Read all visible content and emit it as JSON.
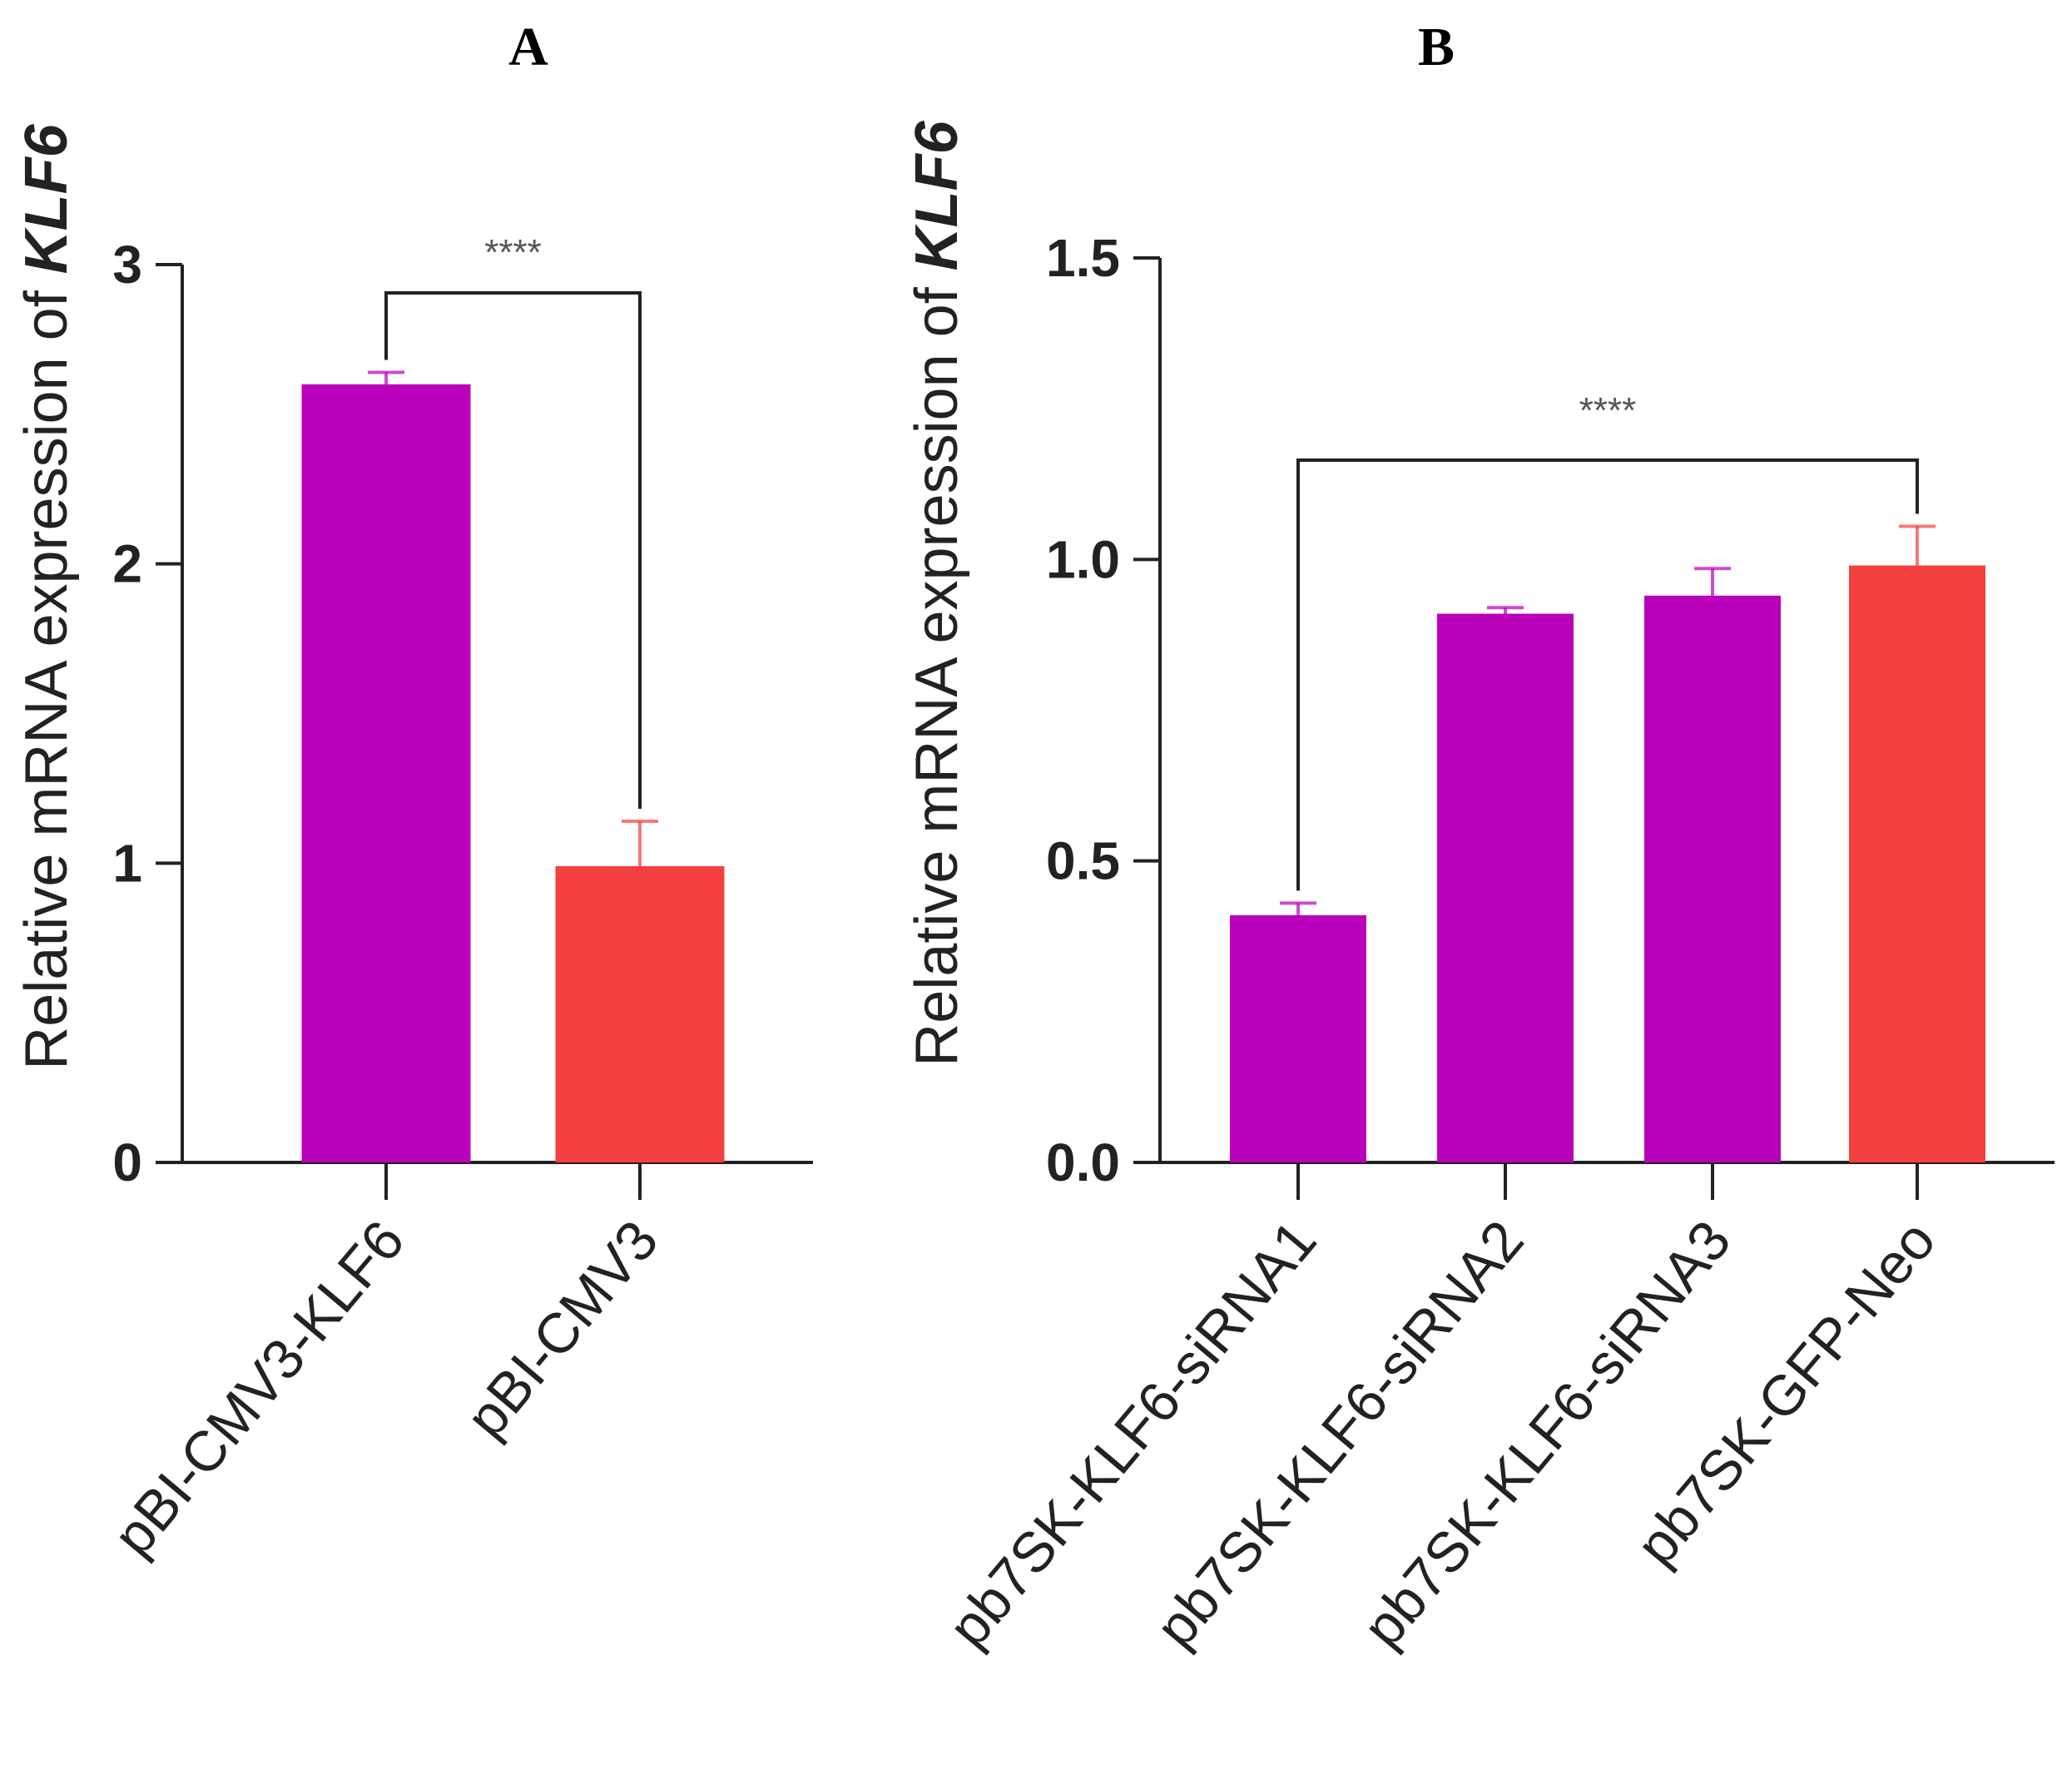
{
  "chart_data": [
    {
      "type": "bar",
      "panel": "A",
      "ylabel": "Relative mRNA expression of KLF6",
      "ylabel_plain": "Relative mRNA expression of ",
      "ylabel_italic": "KLF6",
      "ylim": [
        0,
        3
      ],
      "yticks": [
        "0",
        "1",
        "2",
        "3"
      ],
      "ytick_values": [
        0,
        1,
        2,
        3
      ],
      "categories": [
        "pBI-CMV3-KLF6",
        "pBI-CMV3"
      ],
      "values": [
        2.6,
        0.99
      ],
      "errors": [
        0.04,
        0.15
      ],
      "colors": [
        "#bb00bb",
        "#f43f3f"
      ],
      "significance": {
        "from": 0,
        "to": 1,
        "label": "****"
      }
    },
    {
      "type": "bar",
      "panel": "B",
      "ylabel": "Relative mRNA expression of KLF6",
      "ylabel_plain": "Relative mRNA expression of ",
      "ylabel_italic": "KLF6",
      "ylim": [
        0,
        1.5
      ],
      "yticks": [
        "0.0",
        "0.5",
        "1.0",
        "1.5"
      ],
      "ytick_values": [
        0,
        0.5,
        1.0,
        1.5
      ],
      "categories": [
        "pb7SK-KLF6-siRNA1",
        "pb7SK-KLF6-siRNA2",
        "pb7SK-KLF6-siRNA3",
        "pb7SK-GFP-Neo"
      ],
      "values": [
        0.41,
        0.91,
        0.94,
        0.99
      ],
      "errors": [
        0.02,
        0.01,
        0.045,
        0.065
      ],
      "colors": [
        "#bb00bb",
        "#bb00bb",
        "#bb00bb",
        "#f43f3f"
      ],
      "significance": {
        "from": 0,
        "to": 3,
        "label": "****"
      }
    }
  ]
}
